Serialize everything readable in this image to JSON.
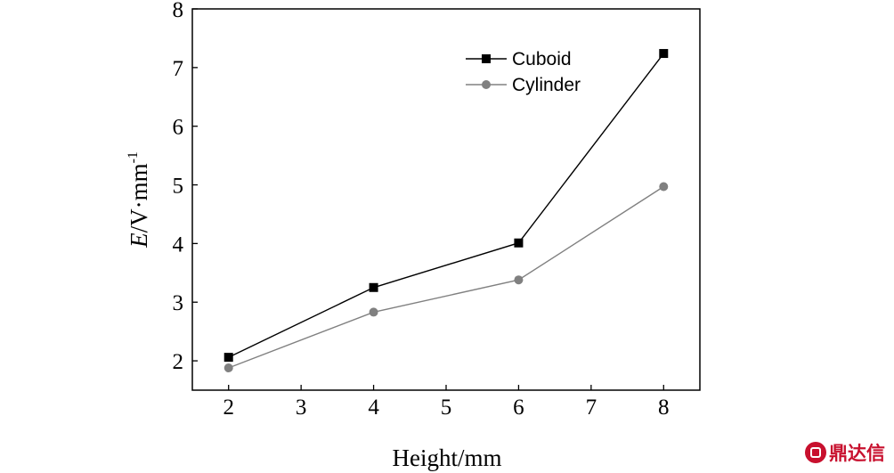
{
  "chart_data": {
    "type": "line",
    "xlabel": "Height/mm",
    "ylabel": {
      "italic": "E",
      "rest": "/V·mm",
      "sup": "-1"
    },
    "xlim": [
      1.5,
      8.5
    ],
    "ylim": [
      1.5,
      8
    ],
    "xticks": [
      2,
      3,
      4,
      5,
      6,
      7,
      8
    ],
    "yticks": [
      2,
      3,
      4,
      5,
      6,
      7,
      8
    ],
    "grid": false,
    "legend_position": "top-right",
    "series": [
      {
        "name": "Cuboid",
        "marker": "square",
        "color": "#000000",
        "x": [
          2,
          4,
          6,
          8
        ],
        "y": [
          2.06,
          3.25,
          4.01,
          7.24
        ]
      },
      {
        "name": "Cylinder",
        "marker": "circle",
        "color": "#808080",
        "x": [
          2,
          4,
          6,
          8
        ],
        "y": [
          1.88,
          2.83,
          3.38,
          4.97
        ]
      }
    ]
  },
  "watermark": {
    "text": "鼎达信"
  }
}
